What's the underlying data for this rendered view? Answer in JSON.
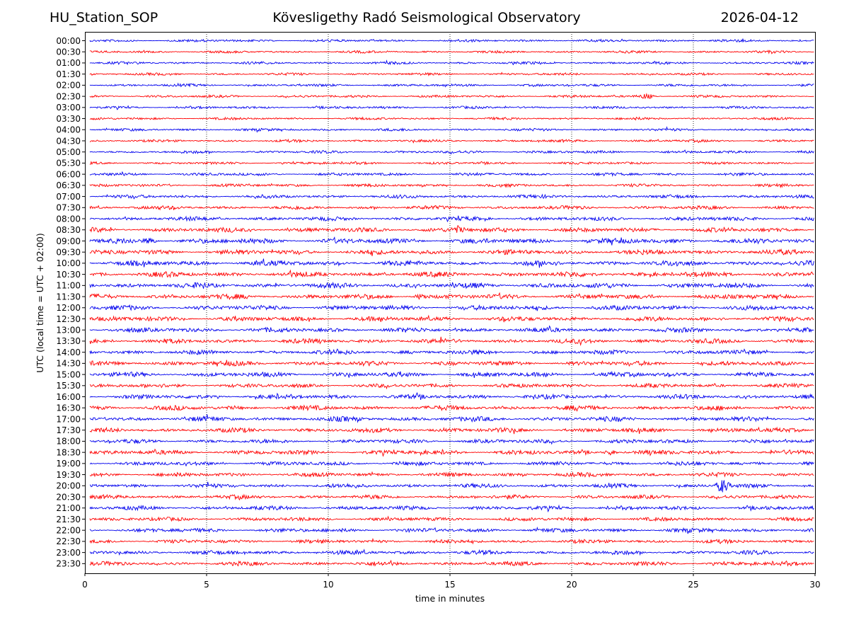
{
  "header": {
    "station": "HU_Station_SOP",
    "observatory": "Kövesligethy Radó Seismological Observatory",
    "date": "2026-04-12"
  },
  "chart_data": {
    "type": "line",
    "title": "Kövesligethy Radó Seismological Observatory",
    "xlabel": "time in minutes",
    "ylabel": "UTC (local time = UTC + 02:00)",
    "xlim": [
      0,
      30
    ],
    "x_ticks": [
      "0",
      "5",
      "10",
      "15",
      "20",
      "25",
      "30"
    ],
    "grid": "vertical dotted lines at every 5 minutes",
    "colors": {
      "even_rows": "#0000ee",
      "odd_rows": "#ff0000"
    },
    "row_labels": [
      "00:00",
      "00:30",
      "01:00",
      "01:30",
      "02:00",
      "02:30",
      "03:00",
      "03:30",
      "04:00",
      "04:30",
      "05:00",
      "05:30",
      "06:00",
      "06:30",
      "07:00",
      "07:30",
      "08:00",
      "08:30",
      "09:00",
      "09:30",
      "10:00",
      "10:30",
      "11:00",
      "11:30",
      "12:00",
      "12:30",
      "13:00",
      "13:30",
      "14:00",
      "14:30",
      "15:00",
      "15:30",
      "16:00",
      "16:30",
      "17:00",
      "17:30",
      "18:00",
      "18:30",
      "19:00",
      "19:30",
      "20:00",
      "20:30",
      "21:00",
      "21:30",
      "22:00",
      "22:30",
      "23:00",
      "23:30"
    ],
    "relative_noise_level": [
      0.25,
      0.22,
      0.25,
      0.22,
      0.25,
      0.25,
      0.25,
      0.22,
      0.25,
      0.25,
      0.3,
      0.25,
      0.35,
      0.35,
      0.45,
      0.5,
      0.6,
      0.75,
      0.9,
      0.8,
      0.85,
      0.85,
      0.85,
      0.8,
      0.8,
      0.75,
      0.75,
      0.7,
      0.7,
      0.75,
      0.75,
      0.6,
      0.7,
      0.75,
      0.75,
      0.7,
      0.6,
      0.7,
      0.6,
      0.6,
      0.6,
      0.55,
      0.6,
      0.55,
      0.6,
      0.55,
      0.6,
      0.6
    ],
    "notable_events": [
      {
        "row": "02:30",
        "minute": 23.1
      },
      {
        "row": "08:30",
        "minute": 15.3
      },
      {
        "row": "09:00",
        "minute": 2.7
      },
      {
        "row": "11:30",
        "minute": 13.8
      },
      {
        "row": "18:30",
        "minute": 21.6
      },
      {
        "row": "20:00",
        "minute": 26.2
      }
    ]
  }
}
